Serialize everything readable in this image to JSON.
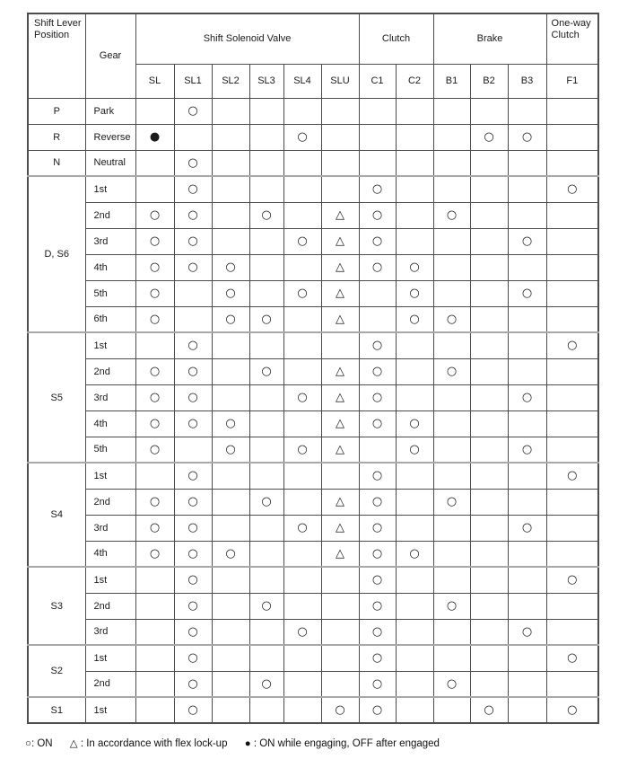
{
  "header": {
    "shift_lever_position": "Shift Lever Position",
    "gear": "Gear",
    "groups": [
      {
        "label": "Shift Solenoid Valve",
        "span": 6
      },
      {
        "label": "Clutch",
        "span": 2
      },
      {
        "label": "Brake",
        "span": 3
      },
      {
        "label": "One-way Clutch",
        "span": 1
      }
    ],
    "columns": [
      "SL",
      "SL1",
      "SL2",
      "SL3",
      "SL4",
      "SLU",
      "C1",
      "C2",
      "B1",
      "B2",
      "B3",
      "F1"
    ]
  },
  "symbols": {
    "on": "○",
    "flex_lockup": "△",
    "on_while_engaging": "●"
  },
  "body": [
    {
      "position": "P",
      "rows": [
        {
          "gear": "Park",
          "cells": [
            "",
            "○",
            "",
            "",
            "",
            "",
            "",
            "",
            "",
            "",
            "",
            ""
          ]
        }
      ]
    },
    {
      "position": "R",
      "rows": [
        {
          "gear": "Reverse",
          "cells": [
            "●",
            "",
            "",
            "",
            "○",
            "",
            "",
            "",
            "",
            "○",
            "○",
            ""
          ]
        }
      ]
    },
    {
      "position": "N",
      "rows": [
        {
          "gear": "Neutral",
          "cells": [
            "",
            "○",
            "",
            "",
            "",
            "",
            "",
            "",
            "",
            "",
            "",
            ""
          ]
        }
      ]
    },
    {
      "position": "D, S6",
      "rows": [
        {
          "gear": "1st",
          "cells": [
            "",
            "○",
            "",
            "",
            "",
            "",
            "○",
            "",
            "",
            "",
            "",
            "○"
          ]
        },
        {
          "gear": "2nd",
          "cells": [
            "○",
            "○",
            "",
            "○",
            "",
            "△",
            "○",
            "",
            "○",
            "",
            "",
            ""
          ]
        },
        {
          "gear": "3rd",
          "cells": [
            "○",
            "○",
            "",
            "",
            "○",
            "△",
            "○",
            "",
            "",
            "",
            "○",
            ""
          ]
        },
        {
          "gear": "4th",
          "cells": [
            "○",
            "○",
            "○",
            "",
            "",
            "△",
            "○",
            "○",
            "",
            "",
            "",
            ""
          ]
        },
        {
          "gear": "5th",
          "cells": [
            "○",
            "",
            "○",
            "",
            "○",
            "△",
            "",
            "○",
            "",
            "",
            "○",
            ""
          ]
        },
        {
          "gear": "6th",
          "cells": [
            "○",
            "",
            "○",
            "○",
            "",
            "△",
            "",
            "○",
            "○",
            "",
            "",
            ""
          ]
        }
      ]
    },
    {
      "position": "S5",
      "rows": [
        {
          "gear": "1st",
          "cells": [
            "",
            "○",
            "",
            "",
            "",
            "",
            "○",
            "",
            "",
            "",
            "",
            "○"
          ]
        },
        {
          "gear": "2nd",
          "cells": [
            "○",
            "○",
            "",
            "○",
            "",
            "△",
            "○",
            "",
            "○",
            "",
            "",
            ""
          ]
        },
        {
          "gear": "3rd",
          "cells": [
            "○",
            "○",
            "",
            "",
            "○",
            "△",
            "○",
            "",
            "",
            "",
            "○",
            ""
          ]
        },
        {
          "gear": "4th",
          "cells": [
            "○",
            "○",
            "○",
            "",
            "",
            "△",
            "○",
            "○",
            "",
            "",
            "",
            ""
          ]
        },
        {
          "gear": "5th",
          "cells": [
            "○",
            "",
            "○",
            "",
            "○",
            "△",
            "",
            "○",
            "",
            "",
            "○",
            ""
          ]
        }
      ]
    },
    {
      "position": "S4",
      "rows": [
        {
          "gear": "1st",
          "cells": [
            "",
            "○",
            "",
            "",
            "",
            "",
            "○",
            "",
            "",
            "",
            "",
            "○"
          ]
        },
        {
          "gear": "2nd",
          "cells": [
            "○",
            "○",
            "",
            "○",
            "",
            "△",
            "○",
            "",
            "○",
            "",
            "",
            ""
          ]
        },
        {
          "gear": "3rd",
          "cells": [
            "○",
            "○",
            "",
            "",
            "○",
            "△",
            "○",
            "",
            "",
            "",
            "○",
            ""
          ]
        },
        {
          "gear": "4th",
          "cells": [
            "○",
            "○",
            "○",
            "",
            "",
            "△",
            "○",
            "○",
            "",
            "",
            "",
            ""
          ]
        }
      ]
    },
    {
      "position": "S3",
      "rows": [
        {
          "gear": "1st",
          "cells": [
            "",
            "○",
            "",
            "",
            "",
            "",
            "○",
            "",
            "",
            "",
            "",
            "○"
          ]
        },
        {
          "gear": "2nd",
          "cells": [
            "",
            "○",
            "",
            "○",
            "",
            "",
            "○",
            "",
            "○",
            "",
            "",
            ""
          ]
        },
        {
          "gear": "3rd",
          "cells": [
            "",
            "○",
            "",
            "",
            "○",
            "",
            "○",
            "",
            "",
            "",
            "○",
            ""
          ]
        }
      ]
    },
    {
      "position": "S2",
      "rows": [
        {
          "gear": "1st",
          "cells": [
            "",
            "○",
            "",
            "",
            "",
            "",
            "○",
            "",
            "",
            "",
            "",
            "○"
          ]
        },
        {
          "gear": "2nd",
          "cells": [
            "",
            "○",
            "",
            "○",
            "",
            "",
            "○",
            "",
            "○",
            "",
            "",
            ""
          ]
        }
      ]
    },
    {
      "position": "S1",
      "rows": [
        {
          "gear": "1st",
          "cells": [
            "",
            "○",
            "",
            "",
            "",
            "○",
            "○",
            "",
            "",
            "○",
            "",
            "○"
          ]
        }
      ]
    }
  ],
  "legend": {
    "items": [
      "○: ON",
      "△ : In accordance with flex lock-up",
      "● : ON while engaging, OFF after engaged"
    ]
  }
}
